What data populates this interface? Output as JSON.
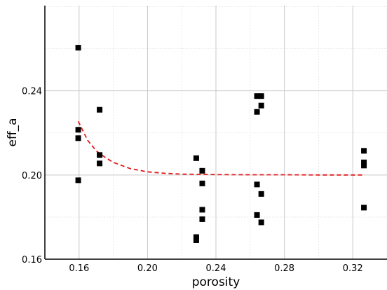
{
  "chart_data": {
    "type": "scatter",
    "title": "",
    "xlabel": "porosity",
    "ylabel": "eff_a",
    "xlim": [
      0.14,
      0.34
    ],
    "ylim": [
      0.16,
      0.2805
    ],
    "grid": {
      "major": true,
      "minor": true
    },
    "x_ticks": [
      0.16,
      0.2,
      0.24,
      0.28,
      0.32
    ],
    "x_tick_labels": [
      "0.16",
      "0.20",
      "0.24",
      "0.28",
      "0.32"
    ],
    "y_ticks": [
      0.16,
      0.2,
      0.24
    ],
    "y_tick_labels": [
      "0.16",
      "0.20",
      "0.24"
    ],
    "series": [
      {
        "kind": "scatter",
        "marker": "square",
        "color": "#000000",
        "points": [
          [
            0.1595,
            0.2605
          ],
          [
            0.1595,
            0.2215
          ],
          [
            0.1595,
            0.2175
          ],
          [
            0.1595,
            0.1975
          ],
          [
            0.172,
            0.231
          ],
          [
            0.172,
            0.2095
          ],
          [
            0.172,
            0.2055
          ],
          [
            0.2285,
            0.208
          ],
          [
            0.2285,
            0.1705
          ],
          [
            0.2285,
            0.169
          ],
          [
            0.232,
            0.202
          ],
          [
            0.232,
            0.196
          ],
          [
            0.232,
            0.1835
          ],
          [
            0.232,
            0.179
          ],
          [
            0.264,
            0.2375
          ],
          [
            0.264,
            0.23
          ],
          [
            0.264,
            0.1955
          ],
          [
            0.264,
            0.181
          ],
          [
            0.2665,
            0.2375
          ],
          [
            0.2665,
            0.233
          ],
          [
            0.2665,
            0.191
          ],
          [
            0.2665,
            0.1775
          ],
          [
            0.3265,
            0.2115
          ],
          [
            0.3265,
            0.206
          ],
          [
            0.3265,
            0.2045
          ],
          [
            0.3265,
            0.1845
          ]
        ]
      },
      {
        "kind": "line",
        "style": "dashed",
        "color": "#e31a1c",
        "points": [
          [
            0.1595,
            0.2255
          ],
          [
            0.165,
            0.2165
          ],
          [
            0.17,
            0.2115
          ],
          [
            0.175,
            0.2085
          ],
          [
            0.18,
            0.206
          ],
          [
            0.19,
            0.203
          ],
          [
            0.2,
            0.2015
          ],
          [
            0.21,
            0.2008
          ],
          [
            0.22,
            0.2004
          ],
          [
            0.24,
            0.2002
          ],
          [
            0.26,
            0.2001
          ],
          [
            0.28,
            0.2001
          ],
          [
            0.3,
            0.2
          ],
          [
            0.3265,
            0.2
          ]
        ]
      }
    ]
  }
}
